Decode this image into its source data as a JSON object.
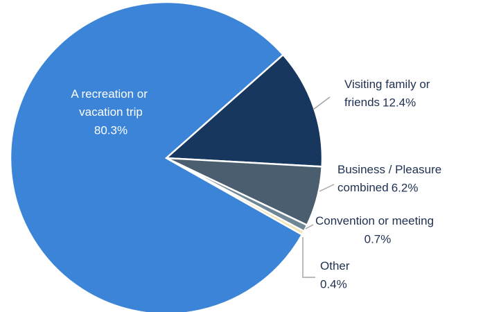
{
  "chart_data": {
    "type": "pie",
    "categories": [
      "A recreation or vacation trip",
      "Visiting family or friends",
      "Business / Pleasure combined",
      "Convention or meeting",
      "Other"
    ],
    "values": [
      80.3,
      12.4,
      6.2,
      0.7,
      0.4
    ],
    "value_labels": [
      "80.3%",
      "12.4%",
      "6.2%",
      "0.7%",
      "0.4%"
    ],
    "colors": [
      "#3b84d7",
      "#17375e",
      "#4a5e6f",
      "#6f8795",
      "#f2e3b3"
    ]
  }
}
